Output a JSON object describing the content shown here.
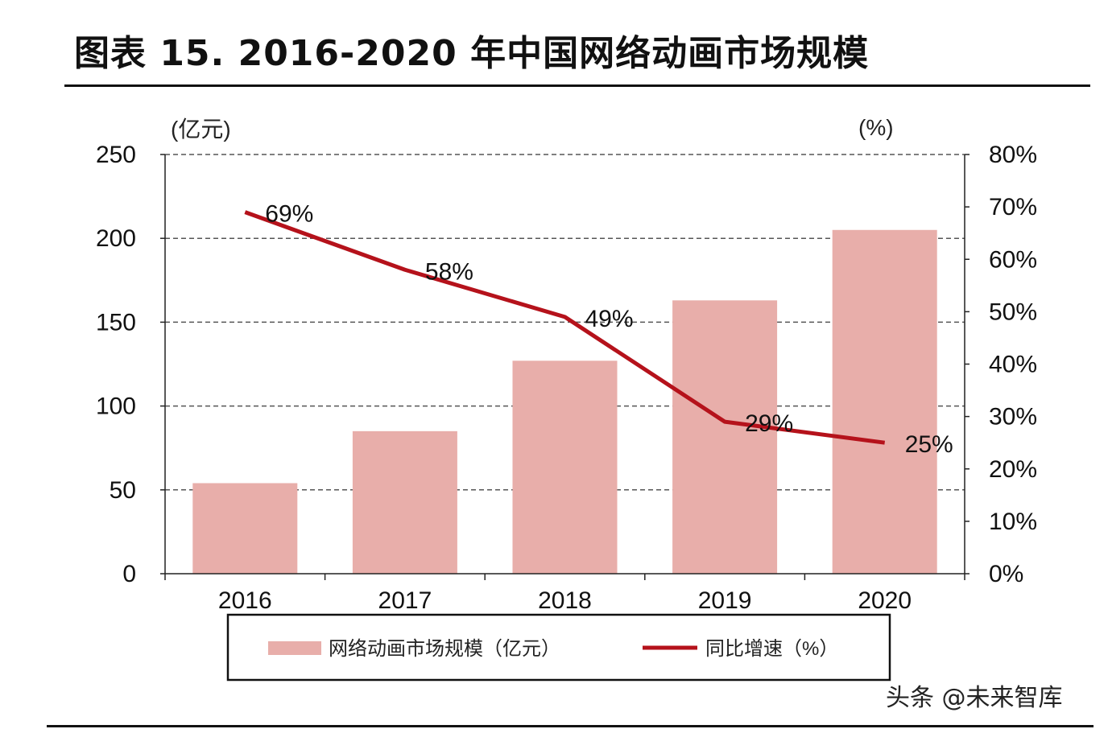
{
  "title": "图表 15. 2016-2020 年中国网络动画市场规模",
  "watermark": "头条 @未来智库",
  "chart_data": {
    "type": "bar+line",
    "title": "图表 15. 2016-2020 年中国网络动画市场规模",
    "categories": [
      "2016",
      "2017",
      "2018",
      "2019",
      "2020"
    ],
    "left_axis": {
      "unit_label": "(亿元)",
      "range": [
        0,
        250
      ],
      "ticks": [
        "0",
        "50",
        "100",
        "150",
        "200",
        "250"
      ]
    },
    "right_axis": {
      "unit_label": "(%)",
      "range": [
        0,
        80
      ],
      "ticks": [
        "0%",
        "10%",
        "20%",
        "30%",
        "40%",
        "50%",
        "60%",
        "70%",
        "80%"
      ]
    },
    "grid": true,
    "legend_placement": "bottom",
    "series": [
      {
        "name": "网络动画市场规模（亿元）",
        "type": "bar",
        "axis": "left",
        "color": "#e8aeaa",
        "values": [
          54,
          85,
          127,
          163,
          205
        ]
      },
      {
        "name": "同比增速（%）",
        "type": "line",
        "axis": "right",
        "color": "#b5121b",
        "values": [
          69,
          58,
          49,
          29,
          25
        ],
        "labels": [
          "69%",
          "58%",
          "49%",
          "29%",
          "25%"
        ]
      }
    ]
  }
}
